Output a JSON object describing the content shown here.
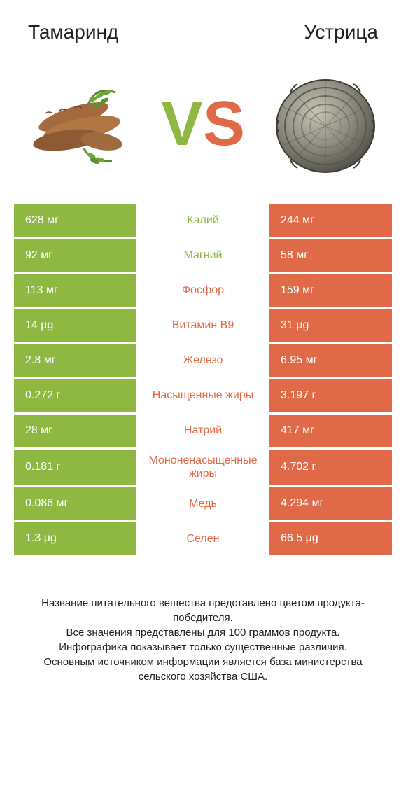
{
  "colors": {
    "green": "#8fb842",
    "orange": "#e06a47",
    "green_txt": "#8fb842",
    "orange_txt": "#e06a47"
  },
  "header": {
    "left": "Тамаринд",
    "right": "Устрица",
    "vs_v": "V",
    "vs_s": "S"
  },
  "rows": [
    {
      "left": "628 мг",
      "mid": "Калий",
      "right": "244 мг",
      "winner": "left"
    },
    {
      "left": "92 мг",
      "mid": "Магний",
      "right": "58 мг",
      "winner": "left"
    },
    {
      "left": "113 мг",
      "mid": "Фосфор",
      "right": "159 мг",
      "winner": "right"
    },
    {
      "left": "14 µg",
      "mid": "Витамин B9",
      "right": "31 µg",
      "winner": "right"
    },
    {
      "left": "2.8 мг",
      "mid": "Железо",
      "right": "6.95 мг",
      "winner": "right"
    },
    {
      "left": "0.272 г",
      "mid": "Насыщенные жиры",
      "right": "3.197 г",
      "winner": "right"
    },
    {
      "left": "28 мг",
      "mid": "Натрий",
      "right": "417 мг",
      "winner": "right"
    },
    {
      "left": "0.181 г",
      "mid": "Мононенасыщенные жиры",
      "right": "4.702 г",
      "winner": "right"
    },
    {
      "left": "0.086 мг",
      "mid": "Медь",
      "right": "4.294 мг",
      "winner": "right"
    },
    {
      "left": "1.3 µg",
      "mid": "Селен",
      "right": "66.5 µg",
      "winner": "right"
    }
  ],
  "footer": {
    "l1": "Название питательного вещества представлено цветом продукта-победителя.",
    "l2": "Все значения представлены для 100 граммов продукта.",
    "l3": "Инфографика показывает только существенные различия.",
    "l4": "Основным источником информации является база министерства сельского хозяйства США."
  }
}
